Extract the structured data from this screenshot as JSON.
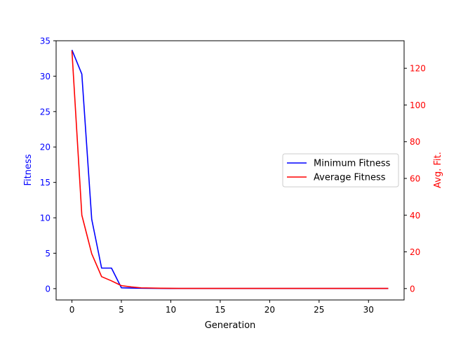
{
  "chart_data": {
    "type": "line",
    "title": "",
    "xlabel": "Generation",
    "ylabel": "Fitness",
    "y2label": "Avg. Fit.",
    "xlim": [
      -1.6,
      33.6
    ],
    "ylim": [
      -1.6,
      35
    ],
    "y2lim": [
      -6.2,
      135
    ],
    "x_ticks": [
      0,
      5,
      10,
      15,
      20,
      25,
      30
    ],
    "y_ticks": [
      0,
      5,
      10,
      15,
      20,
      25,
      30,
      35
    ],
    "y2_ticks": [
      0,
      20,
      40,
      60,
      80,
      100,
      120
    ],
    "grid": false,
    "legend_position": "center-right",
    "colors": {
      "left_axis": "#0000ff",
      "right_axis": "#ff0000",
      "axes": "#000000"
    },
    "series": [
      {
        "name": "Minimum Fitness",
        "axis": "left",
        "color": "#0000ff",
        "x": [
          0,
          1,
          2,
          3,
          4,
          5,
          6,
          7,
          8,
          9,
          10,
          11,
          12,
          13,
          14,
          15,
          16,
          17,
          18,
          19,
          20,
          21,
          22,
          23,
          24,
          25,
          26,
          27,
          28,
          29,
          30,
          31,
          32
        ],
        "values": [
          33.7,
          30.3,
          9.8,
          2.9,
          2.9,
          0.12,
          0.08,
          0.05,
          0.04,
          0.03,
          0.02,
          0.02,
          0.02,
          0.02,
          0.02,
          0.02,
          0.02,
          0.02,
          0.02,
          0.02,
          0.02,
          0.02,
          0.02,
          0.02,
          0.02,
          0.02,
          0.02,
          0.02,
          0.02,
          0.02,
          0.02,
          0.02,
          0.02
        ]
      },
      {
        "name": "Average Fitness",
        "axis": "right",
        "color": "#ff0000",
        "x": [
          0,
          1,
          2,
          3,
          4,
          5,
          6,
          7,
          8,
          9,
          10,
          11,
          12,
          13,
          14,
          15,
          16,
          17,
          18,
          19,
          20,
          21,
          22,
          23,
          24,
          25,
          26,
          27,
          28,
          29,
          30,
          31,
          32
        ],
        "values": [
          129.5,
          40,
          19,
          6.5,
          4.2,
          1.6,
          0.9,
          0.4,
          0.3,
          0.2,
          0.15,
          0.1,
          0.1,
          0.1,
          0.1,
          0.1,
          0.1,
          0.1,
          0.1,
          0.1,
          0.1,
          0.1,
          0.1,
          0.1,
          0.1,
          0.1,
          0.1,
          0.1,
          0.1,
          0.1,
          0.1,
          0.1,
          0.1
        ]
      }
    ]
  }
}
